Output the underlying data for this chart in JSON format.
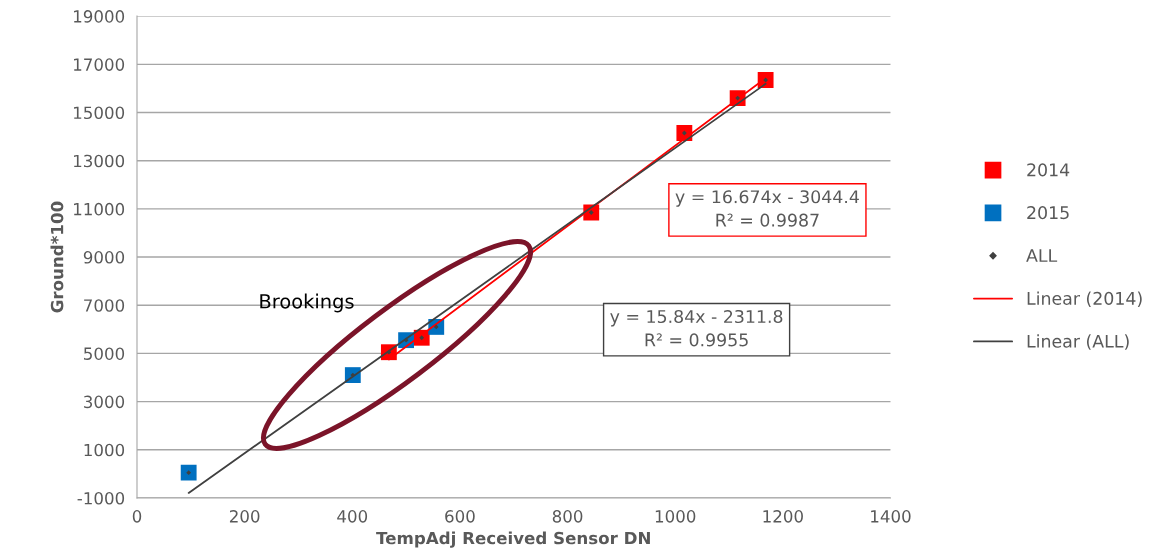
{
  "chart_data": {
    "type": "scatter",
    "xlabel": "TempAdj Received Sensor DN",
    "ylabel": "Ground*100",
    "xlim": [
      0,
      1400
    ],
    "xticks": [
      0,
      200,
      400,
      600,
      800,
      1000,
      1200,
      1400
    ],
    "ylim": [
      -1000,
      19000
    ],
    "yticks": [
      -1000,
      1000,
      3000,
      5000,
      7000,
      9000,
      11000,
      13000,
      15000,
      17000,
      19000
    ],
    "grid": "y",
    "legend": "right",
    "series": [
      {
        "name": "2014",
        "marker": "square",
        "color": "#ff0000",
        "x": [
          468,
          529,
          844,
          1017,
          1116,
          1168
        ],
        "values": [
          5050,
          5650,
          10850,
          14150,
          15600,
          16350
        ]
      },
      {
        "name": "2015",
        "marker": "square",
        "color": "#0070c0",
        "x": [
          96,
          401,
          500,
          556
        ],
        "values": [
          50,
          4100,
          5550,
          6100
        ]
      },
      {
        "name": "ALL",
        "marker": "diamond",
        "color": "#404040",
        "x": [
          96,
          401,
          468,
          500,
          529,
          556,
          844,
          1017,
          1116,
          1168
        ],
        "values": [
          50,
          4100,
          5050,
          5550,
          5650,
          6100,
          10850,
          14150,
          15600,
          16350
        ]
      },
      {
        "name": "Linear (2014)",
        "type": "line",
        "marker": "none",
        "color": "#ff0000",
        "x": [
          468,
          1168
        ],
        "values": [
          4750,
          16430
        ]
      },
      {
        "name": "Linear (ALL)",
        "type": "line",
        "marker": "none",
        "color": "#404040",
        "x": [
          96,
          1168
        ],
        "values": [
          -790,
          16190
        ]
      }
    ],
    "annotations": [
      "y = 16.674x - 3044.4\nR² = 0.9987",
      "y = 15.84x - 2311.8\nR² = 0.9955",
      "Brookings"
    ]
  }
}
